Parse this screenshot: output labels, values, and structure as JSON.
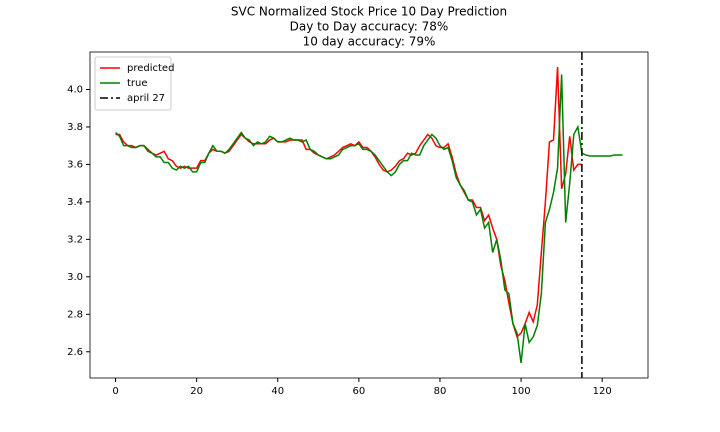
{
  "chart_data": {
    "type": "line",
    "title": "SVC Normalized Stock Price 10 Day Prediction",
    "subtitles": [
      "Day to Day accuracy: 78%",
      "10 day accuracy: 79%"
    ],
    "x": [
      0,
      1,
      2,
      3,
      4,
      5,
      6,
      7,
      8,
      9,
      10,
      11,
      12,
      13,
      14,
      15,
      16,
      17,
      18,
      19,
      20,
      21,
      22,
      23,
      24,
      25,
      26,
      27,
      28,
      29,
      30,
      31,
      32,
      33,
      34,
      35,
      36,
      37,
      38,
      39,
      40,
      41,
      42,
      43,
      44,
      45,
      46,
      47,
      48,
      49,
      50,
      51,
      52,
      53,
      54,
      55,
      56,
      57,
      58,
      59,
      60,
      61,
      62,
      63,
      64,
      65,
      66,
      67,
      68,
      69,
      70,
      71,
      72,
      73,
      74,
      75,
      76,
      77,
      78,
      79,
      80,
      81,
      82,
      83,
      84,
      85,
      86,
      87,
      88,
      89,
      90,
      91,
      92,
      93,
      94,
      95,
      96,
      97,
      98,
      99,
      100,
      101,
      102,
      103,
      104,
      105,
      106,
      107,
      108,
      109,
      110,
      111,
      112,
      113,
      114,
      115,
      116,
      117,
      118,
      119,
      120,
      121,
      122,
      123,
      124,
      125
    ],
    "series": [
      {
        "name": "predicted",
        "color": "#ff0000",
        "values": [
          3.76,
          3.76,
          3.72,
          3.7,
          3.7,
          3.69,
          3.7,
          3.7,
          3.68,
          3.66,
          3.65,
          3.66,
          3.67,
          3.63,
          3.62,
          3.59,
          3.58,
          3.59,
          3.58,
          3.58,
          3.58,
          3.62,
          3.62,
          3.66,
          3.68,
          3.67,
          3.67,
          3.66,
          3.67,
          3.7,
          3.73,
          3.76,
          3.74,
          3.72,
          3.71,
          3.71,
          3.71,
          3.71,
          3.73,
          3.74,
          3.72,
          3.72,
          3.72,
          3.73,
          3.73,
          3.73,
          3.73,
          3.68,
          3.68,
          3.66,
          3.65,
          3.64,
          3.63,
          3.64,
          3.65,
          3.67,
          3.69,
          3.7,
          3.71,
          3.7,
          3.72,
          3.69,
          3.69,
          3.67,
          3.64,
          3.6,
          3.57,
          3.56,
          3.57,
          3.59,
          3.62,
          3.63,
          3.66,
          3.65,
          3.66,
          3.7,
          3.73,
          3.76,
          3.74,
          3.7,
          3.69,
          3.69,
          3.71,
          3.64,
          3.55,
          3.49,
          3.45,
          3.41,
          3.41,
          3.37,
          3.37,
          3.3,
          3.33,
          3.26,
          3.2,
          3.06,
          2.98,
          2.86,
          2.75,
          2.68,
          2.7,
          2.75,
          2.81,
          2.76,
          2.85,
          3.13,
          3.4,
          3.72,
          3.73,
          4.12,
          3.47,
          3.55,
          3.75,
          3.57,
          3.6,
          3.6,
          null,
          null,
          null,
          null,
          null,
          null,
          null,
          null,
          null,
          null
        ]
      },
      {
        "name": "true",
        "color": "#008000",
        "values": [
          3.77,
          3.75,
          3.7,
          3.7,
          3.69,
          3.69,
          3.7,
          3.7,
          3.67,
          3.66,
          3.64,
          3.64,
          3.61,
          3.61,
          3.58,
          3.57,
          3.59,
          3.58,
          3.59,
          3.56,
          3.56,
          3.61,
          3.61,
          3.66,
          3.7,
          3.67,
          3.67,
          3.66,
          3.68,
          3.71,
          3.74,
          3.77,
          3.74,
          3.73,
          3.7,
          3.72,
          3.71,
          3.72,
          3.75,
          3.74,
          3.72,
          3.72,
          3.73,
          3.74,
          3.73,
          3.73,
          3.72,
          3.73,
          3.68,
          3.67,
          3.65,
          3.64,
          3.63,
          3.63,
          3.64,
          3.65,
          3.68,
          3.69,
          3.7,
          3.7,
          3.71,
          3.68,
          3.68,
          3.67,
          3.65,
          3.62,
          3.59,
          3.56,
          3.54,
          3.56,
          3.6,
          3.62,
          3.62,
          3.66,
          3.65,
          3.65,
          3.7,
          3.73,
          3.76,
          3.74,
          3.7,
          3.68,
          3.69,
          3.62,
          3.53,
          3.49,
          3.46,
          3.41,
          3.4,
          3.33,
          3.36,
          3.26,
          3.29,
          3.13,
          3.2,
          3.09,
          2.93,
          2.91,
          2.75,
          2.7,
          2.54,
          2.75,
          2.65,
          2.68,
          2.74,
          2.91,
          3.29,
          3.36,
          3.45,
          3.58,
          4.08,
          3.29,
          3.5,
          3.76,
          3.8,
          3.66,
          3.65,
          3.645,
          3.645,
          3.645,
          3.645,
          3.645,
          3.645,
          3.65,
          3.65,
          3.65
        ]
      }
    ],
    "reference_line": {
      "name": "april 27",
      "x": 115,
      "color": "#000000",
      "style": "dashdot"
    },
    "xlim": [
      -6.3,
      131.3
    ],
    "ylim": [
      2.46,
      4.2
    ],
    "xticks": [
      0,
      20,
      40,
      60,
      80,
      100,
      120
    ],
    "yticks": [
      2.6,
      {
        "value": 2.8,
        "label": "2.8"
      },
      {
        "value": 3,
        "label": "3.0"
      },
      {
        "value": 3.2,
        "label": "3.2"
      },
      {
        "value": 3.4,
        "label": "3.4"
      },
      {
        "value": 3.6,
        "label": "3.6"
      },
      {
        "value": 3.8,
        "label": "3.8"
      },
      {
        "value": 4,
        "label": "4.0"
      }
    ],
    "legend": "upper left",
    "grid": false
  }
}
